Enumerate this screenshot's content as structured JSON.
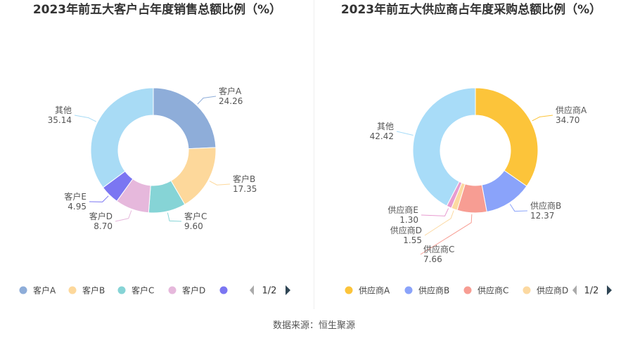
{
  "source": "数据来源：恒生聚源",
  "chart_data": [
    {
      "type": "pie",
      "title": "2023年前五大客户占年度销售总额比例（%）",
      "categories": [
        "客户A",
        "客户B",
        "客户C",
        "客户D",
        "客户E",
        "其他"
      ],
      "values": [
        24.26,
        17.35,
        9.6,
        8.7,
        4.95,
        35.14
      ],
      "value_labels": [
        "24.26",
        "17.35",
        "9.60",
        "8.70",
        "4.95",
        "35.14"
      ],
      "colors": [
        "#8eadd9",
        "#fdd89b",
        "#86d4d6",
        "#e6b8dc",
        "#7b76f2",
        "#a8dbf5"
      ],
      "legend": {
        "placement": "bottom",
        "visible_items": [
          "客户A",
          "客户B",
          "客户C",
          "客户D"
        ],
        "partial_item_color": "#7b76f2",
        "page": "1/2"
      }
    },
    {
      "type": "pie",
      "title": "2023年前五大供应商占年度采购总额比例（%）",
      "categories": [
        "供应商A",
        "供应商B",
        "供应商C",
        "供应商D",
        "供应商E",
        "其他"
      ],
      "values": [
        34.7,
        12.37,
        7.66,
        1.55,
        1.3,
        42.42
      ],
      "value_labels": [
        "34.70",
        "12.37",
        "7.66",
        "1.55",
        "1.30",
        "42.42"
      ],
      "colors": [
        "#fcc43a",
        "#8aa3fa",
        "#f79d93",
        "#fcd9a1",
        "#e89bd0",
        "#a8dcf8"
      ],
      "legend": {
        "placement": "bottom",
        "visible_items": [
          "供应商A",
          "供应商B",
          "供应商C",
          "供应商D"
        ],
        "page": "1/2"
      }
    }
  ]
}
